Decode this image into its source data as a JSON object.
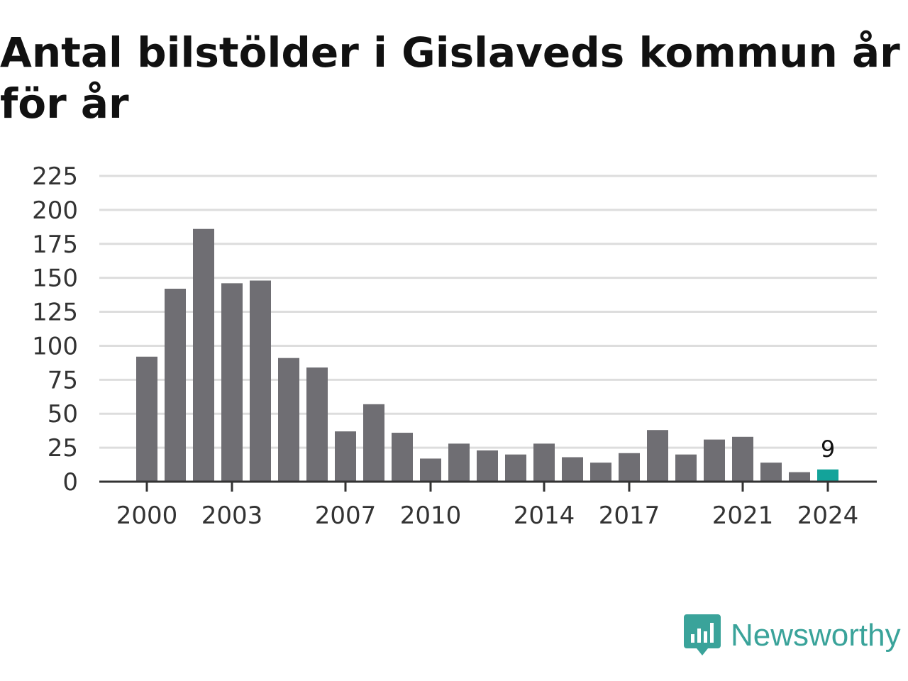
{
  "title": "Antal bilstölder i Gislaveds kommun år för år",
  "brand": {
    "name": "Newsworthy",
    "icon": "newsworthy-logo-icon",
    "color": "#3aa39a"
  },
  "colors": {
    "bar": "#6f6e73",
    "highlight": "#13a39a",
    "grid": "#dddddd",
    "axis": "#333333"
  },
  "chart_data": {
    "type": "bar",
    "title": "Antal bilstölder i Gislaveds kommun år för år",
    "categories": [
      "2000",
      "2001",
      "2002",
      "2003",
      "2004",
      "2005",
      "2006",
      "2007",
      "2008",
      "2009",
      "2010",
      "2011",
      "2012",
      "2013",
      "2014",
      "2015",
      "2016",
      "2017",
      "2018",
      "2019",
      "2020",
      "2021",
      "2022",
      "2023",
      "2024"
    ],
    "values": [
      92,
      142,
      186,
      146,
      148,
      91,
      84,
      37,
      57,
      36,
      17,
      28,
      23,
      20,
      28,
      18,
      14,
      21,
      38,
      20,
      31,
      33,
      14,
      7,
      9
    ],
    "x_tick_labels": [
      "2000",
      "2003",
      "2007",
      "2010",
      "2014",
      "2017",
      "2021",
      "2024"
    ],
    "y_ticks": [
      0,
      25,
      50,
      75,
      100,
      125,
      150,
      175,
      200,
      225
    ],
    "ylim": [
      0,
      225
    ],
    "highlight_index": 24,
    "highlight_label": "9",
    "grid": true,
    "legend": "none"
  }
}
